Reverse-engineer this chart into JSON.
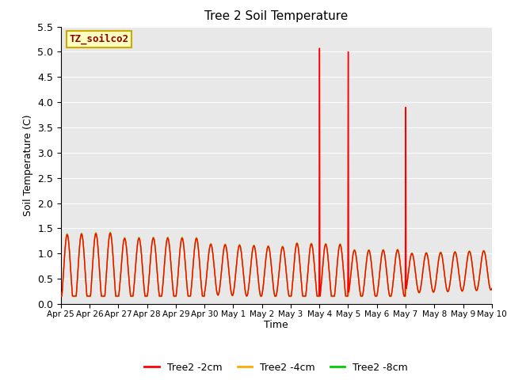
{
  "title": "Tree 2 Soil Temperature",
  "ylabel": "Soil Temperature (C)",
  "xlabel": "Time",
  "ylim": [
    0.0,
    5.5
  ],
  "yticks": [
    0.0,
    0.5,
    1.0,
    1.5,
    2.0,
    2.5,
    3.0,
    3.5,
    4.0,
    4.5,
    5.0,
    5.5
  ],
  "xtick_labels": [
    "Apr 25",
    "Apr 26",
    "Apr 27",
    "Apr 28",
    "Apr 29",
    "Apr 30",
    "May 1",
    "May 2",
    "May 3",
    "May 4",
    "May 5",
    "May 6",
    "May 7",
    "May 8",
    "May 9",
    "May 10"
  ],
  "annotation_text": "TZ_soilco2",
  "annotation_text_color": "#8b0000",
  "annotation_box_color": "#ffffc0",
  "annotation_box_edge": "#ccaa00",
  "legend_entries": [
    "Tree2 -2cm",
    "Tree2 -4cm",
    "Tree2 -8cm"
  ],
  "legend_colors": [
    "#ff0000",
    "#ffaa00",
    "#00cc00"
  ],
  "line2cm_color": "#ff0000",
  "line4cm_color": "#ffaa00",
  "line8cm_color": "#00cc00",
  "plot_bg_color": "#e8e8e8",
  "fig_bg_color": "#ffffff",
  "grid_color": "#ffffff",
  "num_days": 15,
  "red_spikes": [
    {
      "day": 9.0,
      "value": 5.07,
      "base": 0.25
    },
    {
      "day": 10.0,
      "value": 5.0,
      "base": 0.15
    },
    {
      "day": 12.0,
      "value": 3.9,
      "base": 0.3
    }
  ]
}
